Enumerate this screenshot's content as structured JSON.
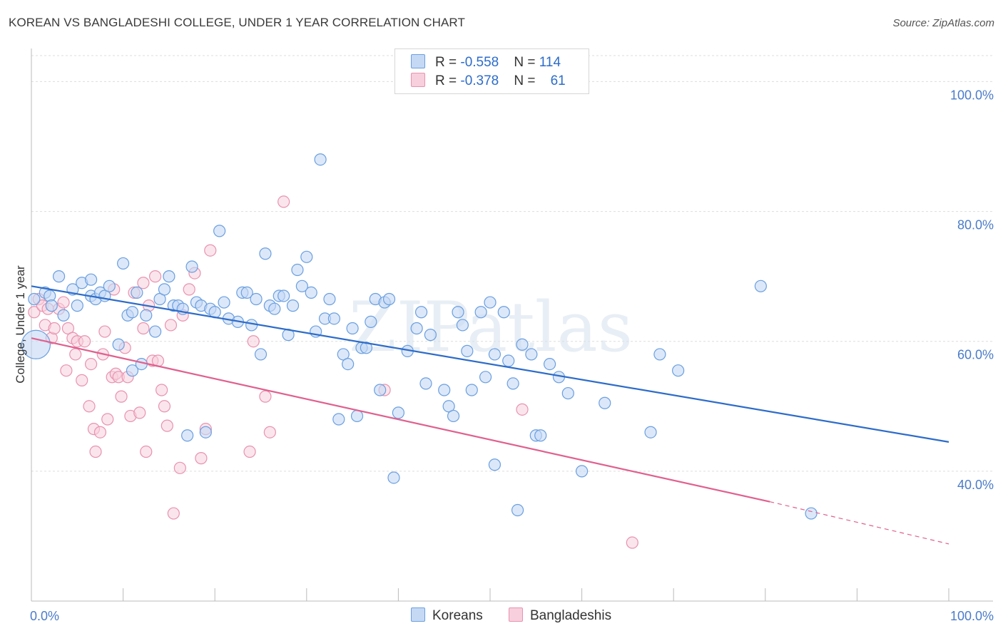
{
  "title": "KOREAN VS BANGLADESHI COLLEGE, UNDER 1 YEAR CORRELATION CHART",
  "source": "Source: ZipAtlas.com",
  "watermark": "ZIPatlas",
  "legend": {
    "rows": [
      {
        "r_label": "R = ",
        "r_value": "-0.558",
        "n_label": "N = ",
        "n_value": "114"
      },
      {
        "r_label": "R = ",
        "r_value": "-0.378",
        "n_label": "N = ",
        "n_value": "61"
      }
    ]
  },
  "bottom_legend": [
    "Koreans",
    "Bangladeshis"
  ],
  "colors": {
    "koreans_fill": "#c5d9f5",
    "koreans_stroke": "#6a9fe0",
    "koreans_line": "#2d6cc9",
    "bangladeshis_fill": "#f8cfdd",
    "bangladeshis_stroke": "#e892b0",
    "bangladeshis_line": "#e0608e",
    "axis_label": "#4a7cc9",
    "grid": "#dddddd"
  },
  "chart_data": {
    "type": "scatter",
    "xlabel": "",
    "ylabel": "College, Under 1 year",
    "xlim": [
      0,
      100
    ],
    "ylim": [
      20,
      104
    ],
    "x_tick_labels": [
      "0.0%",
      "100.0%"
    ],
    "y_ticks": [
      40,
      60,
      80,
      100
    ],
    "y_tick_labels": [
      "40.0%",
      "60.0%",
      "80.0%",
      "100.0%"
    ],
    "grid": true,
    "legend_placement": "top-center",
    "series": [
      {
        "name": "Koreans",
        "r": -0.558,
        "n": 114,
        "trend": {
          "x0": 0,
          "y0": 68.5,
          "x1": 100,
          "y1": 44.5
        },
        "points": [
          [
            0.3,
            66.5,
            1
          ],
          [
            0.5,
            59.5,
            3
          ],
          [
            1.5,
            67.5,
            1
          ],
          [
            2,
            67,
            1
          ],
          [
            2.2,
            65.5,
            1
          ],
          [
            3,
            70,
            1
          ],
          [
            3.5,
            64,
            1
          ],
          [
            4.5,
            68,
            1
          ],
          [
            5,
            65.5,
            1
          ],
          [
            5.5,
            69,
            1
          ],
          [
            6.5,
            67,
            1
          ],
          [
            6.5,
            69.5,
            1
          ],
          [
            7,
            66.5,
            1
          ],
          [
            7.5,
            67.5,
            1
          ],
          [
            8,
            67,
            1
          ],
          [
            8.5,
            68.5,
            1
          ],
          [
            9.5,
            59.5,
            1
          ],
          [
            10,
            72,
            1
          ],
          [
            10.5,
            64,
            1
          ],
          [
            11,
            64.5,
            1
          ],
          [
            11,
            55.5,
            1
          ],
          [
            11.5,
            67.5,
            1
          ],
          [
            12,
            56.5,
            1
          ],
          [
            12.5,
            64,
            1
          ],
          [
            13.5,
            61.5,
            1
          ],
          [
            14,
            66.5,
            1
          ],
          [
            14.5,
            68,
            1
          ],
          [
            15,
            70,
            1
          ],
          [
            15.5,
            65.5,
            1
          ],
          [
            16,
            65.5,
            1
          ],
          [
            16.5,
            65,
            1
          ],
          [
            17,
            45.5,
            1
          ],
          [
            17.5,
            71.5,
            1
          ],
          [
            18,
            66,
            1
          ],
          [
            18.5,
            65.5,
            1
          ],
          [
            19,
            46,
            1
          ],
          [
            19.5,
            65,
            1
          ],
          [
            20,
            64.5,
            1
          ],
          [
            20.5,
            77,
            1
          ],
          [
            21,
            66,
            1
          ],
          [
            21.5,
            63.5,
            1
          ],
          [
            22.5,
            63,
            1
          ],
          [
            23,
            67.5,
            1
          ],
          [
            23.5,
            67.5,
            1
          ],
          [
            24,
            62.5,
            1
          ],
          [
            24.5,
            66.5,
            1
          ],
          [
            25,
            58,
            1
          ],
          [
            25.5,
            73.5,
            1
          ],
          [
            26,
            65.5,
            1
          ],
          [
            26.5,
            65,
            1
          ],
          [
            27,
            67,
            1
          ],
          [
            27.5,
            67,
            1
          ],
          [
            28,
            61,
            1
          ],
          [
            28.5,
            65.5,
            1
          ],
          [
            29,
            71,
            1
          ],
          [
            29.5,
            68.5,
            1
          ],
          [
            30,
            73,
            1
          ],
          [
            30.5,
            67.5,
            1
          ],
          [
            31,
            61.5,
            1
          ],
          [
            31.5,
            88,
            1
          ],
          [
            32,
            63.5,
            1
          ],
          [
            32.5,
            66.5,
            1
          ],
          [
            33,
            63.5,
            1
          ],
          [
            33.5,
            48,
            1
          ],
          [
            34,
            58,
            1
          ],
          [
            34.5,
            56.5,
            1
          ],
          [
            35,
            62,
            1
          ],
          [
            35.5,
            48.5,
            1
          ],
          [
            36,
            59,
            1
          ],
          [
            36.5,
            59,
            1
          ],
          [
            37,
            63,
            1
          ],
          [
            37.5,
            66.5,
            1
          ],
          [
            38,
            52.5,
            1
          ],
          [
            38.5,
            66,
            1
          ],
          [
            39,
            66.5,
            1
          ],
          [
            39.5,
            39,
            1
          ],
          [
            40,
            49,
            1
          ],
          [
            41,
            58.5,
            1
          ],
          [
            42,
            62,
            1
          ],
          [
            42.5,
            64.5,
            1
          ],
          [
            43,
            53.5,
            1
          ],
          [
            45,
            52.5,
            1
          ],
          [
            45.5,
            50,
            1
          ],
          [
            46,
            48.5,
            1
          ],
          [
            46.5,
            64.5,
            1
          ],
          [
            47,
            62.5,
            1
          ],
          [
            47.5,
            58.5,
            1
          ],
          [
            48,
            52.5,
            1
          ],
          [
            49,
            64.5,
            1
          ],
          [
            49.5,
            54.5,
            1
          ],
          [
            50,
            66,
            1
          ],
          [
            50.5,
            58,
            1
          ],
          [
            51.5,
            64.5,
            1
          ],
          [
            52,
            57,
            1
          ],
          [
            52.5,
            53.5,
            1
          ],
          [
            53,
            34,
            1
          ],
          [
            53.5,
            59.5,
            1
          ],
          [
            54.5,
            58,
            1
          ],
          [
            55,
            45.5,
            1
          ],
          [
            55.5,
            45.5,
            1
          ],
          [
            56.5,
            56.5,
            1
          ],
          [
            57.5,
            54.5,
            1
          ],
          [
            58.5,
            52,
            1
          ],
          [
            60,
            40,
            1
          ],
          [
            62.5,
            50.5,
            1
          ],
          [
            67.5,
            46,
            1
          ],
          [
            68.5,
            58,
            1
          ],
          [
            70.5,
            55.5,
            1
          ],
          [
            79.5,
            68.5,
            1
          ],
          [
            85,
            33.5,
            1
          ],
          [
            50.5,
            41,
            1
          ],
          [
            43.5,
            61,
            1
          ]
        ]
      },
      {
        "name": "Bangladeshis",
        "r": -0.378,
        "n": 61,
        "trend": {
          "x0": 0,
          "y0": 60.5,
          "x1": 80.5,
          "y1": 35.3
        },
        "trend_dashed_to": {
          "x": 100,
          "y": 28.8
        },
        "points": [
          [
            0.3,
            64.5,
            1
          ],
          [
            0.8,
            66.5,
            1
          ],
          [
            1.2,
            65.5,
            1
          ],
          [
            1.5,
            62.5,
            1
          ],
          [
            1.8,
            65,
            1
          ],
          [
            2.2,
            60.5,
            1
          ],
          [
            2.5,
            62,
            1
          ],
          [
            3,
            65,
            1
          ],
          [
            3.5,
            66,
            1
          ],
          [
            3.8,
            55.5,
            1
          ],
          [
            4,
            62,
            1
          ],
          [
            4.5,
            60.5,
            1
          ],
          [
            4.8,
            58,
            1
          ],
          [
            5,
            60,
            1
          ],
          [
            5.5,
            54,
            1
          ],
          [
            5.8,
            60,
            1
          ],
          [
            6.3,
            50,
            1
          ],
          [
            6.5,
            56.5,
            1
          ],
          [
            6.8,
            46.5,
            1
          ],
          [
            7,
            43,
            1
          ],
          [
            7.5,
            46,
            1
          ],
          [
            7.8,
            58,
            1
          ],
          [
            8,
            61.5,
            1
          ],
          [
            8.3,
            48,
            1
          ],
          [
            8.8,
            54.5,
            1
          ],
          [
            9.2,
            55,
            1
          ],
          [
            9.5,
            54.5,
            1
          ],
          [
            9.8,
            51.5,
            1
          ],
          [
            10.2,
            59,
            1
          ],
          [
            10.5,
            54.5,
            1
          ],
          [
            10.8,
            48.5,
            1
          ],
          [
            11.2,
            67.5,
            1
          ],
          [
            11.8,
            49,
            1
          ],
          [
            12.2,
            69,
            1
          ],
          [
            12.5,
            43,
            1
          ],
          [
            12.8,
            65.5,
            1
          ],
          [
            13.2,
            57,
            1
          ],
          [
            13.5,
            70,
            1
          ],
          [
            13.8,
            57,
            1
          ],
          [
            14.2,
            52.5,
            1
          ],
          [
            14.5,
            50,
            1
          ],
          [
            14.8,
            47,
            1
          ],
          [
            15.2,
            62.5,
            1
          ],
          [
            15.5,
            33.5,
            1
          ],
          [
            16.2,
            40.5,
            1
          ],
          [
            16.5,
            64,
            1
          ],
          [
            17.2,
            68,
            1
          ],
          [
            17.8,
            70.5,
            1
          ],
          [
            18.5,
            42,
            1
          ],
          [
            19,
            46.5,
            1
          ],
          [
            19.5,
            74,
            1
          ],
          [
            23.8,
            43,
            1
          ],
          [
            24.2,
            60,
            1
          ],
          [
            25.5,
            51.5,
            1
          ],
          [
            26,
            46,
            1
          ],
          [
            27.5,
            81.5,
            1
          ],
          [
            38.5,
            52.5,
            1
          ],
          [
            53.5,
            49.5,
            1
          ],
          [
            65.5,
            29,
            1
          ],
          [
            12.2,
            62,
            1
          ],
          [
            9,
            68,
            1
          ]
        ]
      }
    ]
  }
}
